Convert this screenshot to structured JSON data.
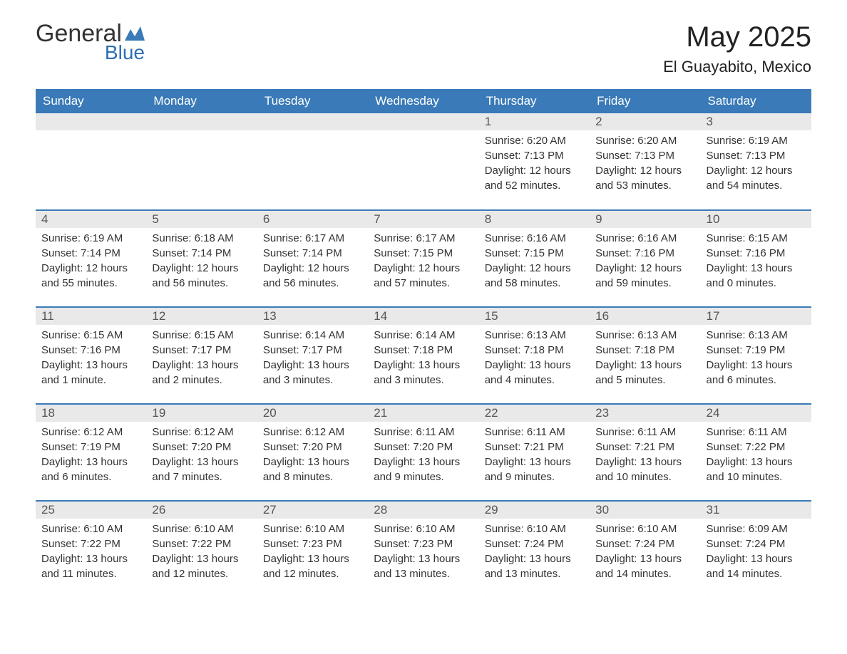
{
  "logo": {
    "general": "General",
    "blue": "Blue"
  },
  "title": {
    "month": "May 2025",
    "location": "El Guayabito, Mexico"
  },
  "colors": {
    "header_bg": "#3a7ab8",
    "logo_blue": "#2e6fb3",
    "daynum_bg": "#e9e9e9"
  },
  "weekdays": [
    "Sunday",
    "Monday",
    "Tuesday",
    "Wednesday",
    "Thursday",
    "Friday",
    "Saturday"
  ],
  "weeks": [
    [
      null,
      null,
      null,
      null,
      {
        "n": "1",
        "sunrise": "6:20 AM",
        "sunset": "7:13 PM",
        "daylight": "12 hours and 52 minutes."
      },
      {
        "n": "2",
        "sunrise": "6:20 AM",
        "sunset": "7:13 PM",
        "daylight": "12 hours and 53 minutes."
      },
      {
        "n": "3",
        "sunrise": "6:19 AM",
        "sunset": "7:13 PM",
        "daylight": "12 hours and 54 minutes."
      }
    ],
    [
      {
        "n": "4",
        "sunrise": "6:19 AM",
        "sunset": "7:14 PM",
        "daylight": "12 hours and 55 minutes."
      },
      {
        "n": "5",
        "sunrise": "6:18 AM",
        "sunset": "7:14 PM",
        "daylight": "12 hours and 56 minutes."
      },
      {
        "n": "6",
        "sunrise": "6:17 AM",
        "sunset": "7:14 PM",
        "daylight": "12 hours and 56 minutes."
      },
      {
        "n": "7",
        "sunrise": "6:17 AM",
        "sunset": "7:15 PM",
        "daylight": "12 hours and 57 minutes."
      },
      {
        "n": "8",
        "sunrise": "6:16 AM",
        "sunset": "7:15 PM",
        "daylight": "12 hours and 58 minutes."
      },
      {
        "n": "9",
        "sunrise": "6:16 AM",
        "sunset": "7:16 PM",
        "daylight": "12 hours and 59 minutes."
      },
      {
        "n": "10",
        "sunrise": "6:15 AM",
        "sunset": "7:16 PM",
        "daylight": "13 hours and 0 minutes."
      }
    ],
    [
      {
        "n": "11",
        "sunrise": "6:15 AM",
        "sunset": "7:16 PM",
        "daylight": "13 hours and 1 minute."
      },
      {
        "n": "12",
        "sunrise": "6:15 AM",
        "sunset": "7:17 PM",
        "daylight": "13 hours and 2 minutes."
      },
      {
        "n": "13",
        "sunrise": "6:14 AM",
        "sunset": "7:17 PM",
        "daylight": "13 hours and 3 minutes."
      },
      {
        "n": "14",
        "sunrise": "6:14 AM",
        "sunset": "7:18 PM",
        "daylight": "13 hours and 3 minutes."
      },
      {
        "n": "15",
        "sunrise": "6:13 AM",
        "sunset": "7:18 PM",
        "daylight": "13 hours and 4 minutes."
      },
      {
        "n": "16",
        "sunrise": "6:13 AM",
        "sunset": "7:18 PM",
        "daylight": "13 hours and 5 minutes."
      },
      {
        "n": "17",
        "sunrise": "6:13 AM",
        "sunset": "7:19 PM",
        "daylight": "13 hours and 6 minutes."
      }
    ],
    [
      {
        "n": "18",
        "sunrise": "6:12 AM",
        "sunset": "7:19 PM",
        "daylight": "13 hours and 6 minutes."
      },
      {
        "n": "19",
        "sunrise": "6:12 AM",
        "sunset": "7:20 PM",
        "daylight": "13 hours and 7 minutes."
      },
      {
        "n": "20",
        "sunrise": "6:12 AM",
        "sunset": "7:20 PM",
        "daylight": "13 hours and 8 minutes."
      },
      {
        "n": "21",
        "sunrise": "6:11 AM",
        "sunset": "7:20 PM",
        "daylight": "13 hours and 9 minutes."
      },
      {
        "n": "22",
        "sunrise": "6:11 AM",
        "sunset": "7:21 PM",
        "daylight": "13 hours and 9 minutes."
      },
      {
        "n": "23",
        "sunrise": "6:11 AM",
        "sunset": "7:21 PM",
        "daylight": "13 hours and 10 minutes."
      },
      {
        "n": "24",
        "sunrise": "6:11 AM",
        "sunset": "7:22 PM",
        "daylight": "13 hours and 10 minutes."
      }
    ],
    [
      {
        "n": "25",
        "sunrise": "6:10 AM",
        "sunset": "7:22 PM",
        "daylight": "13 hours and 11 minutes."
      },
      {
        "n": "26",
        "sunrise": "6:10 AM",
        "sunset": "7:22 PM",
        "daylight": "13 hours and 12 minutes."
      },
      {
        "n": "27",
        "sunrise": "6:10 AM",
        "sunset": "7:23 PM",
        "daylight": "13 hours and 12 minutes."
      },
      {
        "n": "28",
        "sunrise": "6:10 AM",
        "sunset": "7:23 PM",
        "daylight": "13 hours and 13 minutes."
      },
      {
        "n": "29",
        "sunrise": "6:10 AM",
        "sunset": "7:24 PM",
        "daylight": "13 hours and 13 minutes."
      },
      {
        "n": "30",
        "sunrise": "6:10 AM",
        "sunset": "7:24 PM",
        "daylight": "13 hours and 14 minutes."
      },
      {
        "n": "31",
        "sunrise": "6:09 AM",
        "sunset": "7:24 PM",
        "daylight": "13 hours and 14 minutes."
      }
    ]
  ],
  "labels": {
    "sunrise": "Sunrise: ",
    "sunset": "Sunset: ",
    "daylight": "Daylight: "
  }
}
